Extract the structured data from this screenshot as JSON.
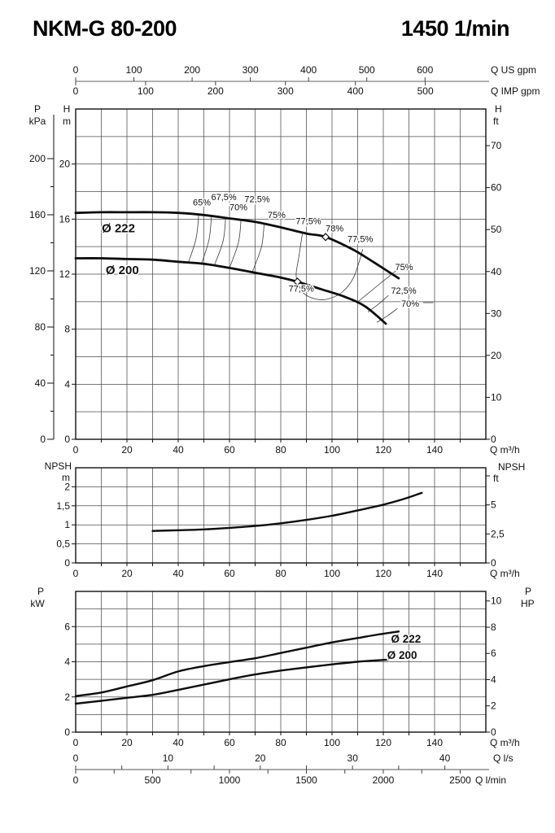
{
  "header": {
    "model": "NKM-G 80-200",
    "speed": "1450 1/min"
  },
  "top_axis": {
    "us": {
      "unit": "Q US gpm",
      "labels": [
        0,
        100,
        200,
        300,
        400,
        500,
        600
      ]
    },
    "imp": {
      "unit": "Q IMP gpm",
      "labels": [
        0,
        100,
        200,
        300,
        400,
        500
      ]
    }
  },
  "bottom_axis": {
    "ls": {
      "unit": "Q l/s",
      "labels": [
        0,
        10,
        20,
        30,
        40
      ]
    },
    "lmin": {
      "unit": "Q l/min",
      "labels": [
        0,
        500,
        1000,
        1500,
        2000,
        2500
      ]
    }
  },
  "colors": {
    "curve": "#0d0d0d",
    "grid": "#4d4d4d",
    "frame": "#111111",
    "secondary_axis": "#808080"
  },
  "chart_data": [
    {
      "id": "head",
      "type": "line",
      "x_unit": "Q m³/h",
      "xlim": [
        0,
        160
      ],
      "x_grid_step": 10,
      "x_label_step": 20,
      "y_m": {
        "header": [
          "H",
          "m"
        ],
        "labels": [
          0,
          4,
          8,
          12,
          16,
          20
        ],
        "lim": [
          0,
          24
        ],
        "grid_step": 2
      },
      "y_kpa": {
        "header": [
          "P",
          "kPa"
        ],
        "labels": [
          0,
          40,
          80,
          120,
          160,
          200
        ],
        "tick_step": 20
      },
      "y_ft": {
        "header": [
          "H",
          "ft"
        ],
        "labels": [
          0,
          10,
          20,
          30,
          40,
          50,
          60,
          70
        ]
      },
      "series": [
        {
          "name": "Ø 222",
          "points": [
            [
              0,
              16.45
            ],
            [
              10,
              16.5
            ],
            [
              20,
              16.5
            ],
            [
              30,
              16.5
            ],
            [
              40,
              16.45
            ],
            [
              50,
              16.3
            ],
            [
              60,
              16.05
            ],
            [
              70,
              15.8
            ],
            [
              80,
              15.4
            ],
            [
              90,
              14.95
            ],
            [
              97.5,
              14.7
            ],
            [
              108,
              13.8
            ],
            [
              116,
              12.9
            ],
            [
              126,
              11.7
            ]
          ]
        },
        {
          "name": "Ø 200",
          "points": [
            [
              0,
              13.15
            ],
            [
              10,
              13.15
            ],
            [
              20,
              13.1
            ],
            [
              30,
              13.05
            ],
            [
              40,
              12.9
            ],
            [
              50,
              12.75
            ],
            [
              60,
              12.45
            ],
            [
              70,
              12.1
            ],
            [
              80,
              11.75
            ],
            [
              86.5,
              11.45
            ],
            [
              95,
              10.95
            ],
            [
              105,
              10.35
            ],
            [
              113,
              9.65
            ],
            [
              121,
              8.4
            ]
          ]
        }
      ],
      "impeller_labels": [
        {
          "text": "Ø 222",
          "q": 10.2,
          "h": 15.05
        },
        {
          "text": "Ø 200",
          "q": 11.7,
          "h": 12.0
        }
      ],
      "best_efficiency_points": [
        {
          "eff": "78%",
          "q": 97.5,
          "h": 14.7
        },
        {
          "eff": "77,5%",
          "q": 86.5,
          "h": 11.45
        }
      ],
      "efficiency": {
        "labels": [
          {
            "text": "65%",
            "q": 49.2,
            "h": 17.2
          },
          {
            "text": "67,5%",
            "q": 57.8,
            "h": 17.6
          },
          {
            "text": "70%",
            "q": 63.5,
            "h": 16.85
          },
          {
            "text": "72,5%",
            "q": 70.8,
            "h": 17.45
          },
          {
            "text": "75%",
            "q": 78.4,
            "h": 16.3
          },
          {
            "text": "77,5%",
            "q": 90.8,
            "h": 15.85
          },
          {
            "text": "78%",
            "q": 101.0,
            "h": 15.3
          },
          {
            "text": "77,5%",
            "q": 111.0,
            "h": 14.55
          },
          {
            "text": "77,5%",
            "q": 88.0,
            "h": 10.95
          },
          {
            "text": "75%",
            "q": 124.6,
            "h": 12.5,
            "anchor": "start"
          },
          {
            "text": "72,5%",
            "q": 123.0,
            "h": 10.8,
            "anchor": "start"
          },
          {
            "text": "70%",
            "q": 127.0,
            "h": 9.85,
            "anchor": "start"
          }
        ],
        "contours": [
          {
            "eff": "65%",
            "points": [
              [
                48,
                16.37
              ],
              [
                47,
                14.6
              ],
              [
                44,
                12.87
              ]
            ]
          },
          {
            "eff": "67,5%",
            "points": [
              [
                53,
                16.25
              ],
              [
                52,
                14.5
              ],
              [
                49,
                12.7
              ]
            ]
          },
          {
            "eff": "70%",
            "points": [
              [
                58.5,
                16.1
              ],
              [
                57.5,
                14.4
              ],
              [
                54,
                12.6
              ]
            ]
          },
          {
            "eff": "72,5%",
            "points": [
              [
                64.5,
                15.95
              ],
              [
                63.5,
                14.3
              ],
              [
                60,
                12.45
              ]
            ]
          },
          {
            "eff": "75%",
            "points": [
              [
                73.5,
                15.6
              ],
              [
                72.5,
                14.0
              ],
              [
                69,
                12.2
              ]
            ]
          },
          {
            "eff": "77,5%",
            "points": [
              [
                88.5,
                15.05
              ],
              [
                87,
                13.2
              ],
              [
                86,
                12.0
              ],
              [
                86.8,
                11.3
              ],
              [
                89,
                10.6
              ],
              [
                93.5,
                10.2
              ],
              [
                98.5,
                10.2
              ],
              [
                104,
                10.7
              ],
              [
                108.5,
                11.8
              ],
              [
                112,
                13.8
              ]
            ]
          },
          {
            "eff": "75%",
            "points": [
              [
                126,
                12.4
              ],
              [
                118,
                11.2
              ],
              [
                109.5,
                9.9
              ]
            ]
          },
          {
            "eff": "72,5%",
            "points": [
              [
                122,
                10.45
              ],
              [
                118,
                9.8
              ],
              [
                114,
                9.25
              ]
            ]
          },
          {
            "eff": "70%",
            "points": [
              [
                125.5,
                9.5
              ],
              [
                121.5,
                8.95
              ],
              [
                117.5,
                8.5
              ]
            ]
          },
          {
            "eff": "70%",
            "points": [
              [
                135.5,
                9.93
              ],
              [
                139.5,
                9.93
              ]
            ]
          }
        ]
      }
    },
    {
      "id": "npsh",
      "type": "line",
      "x_unit": "Q m³/h",
      "y_m": {
        "header": [
          "NPSH",
          "m"
        ],
        "labels": [
          "2",
          "1,5",
          "1",
          "0,5",
          "0"
        ],
        "values": [
          2,
          1.5,
          1,
          0.5,
          0
        ],
        "lim": [
          0,
          2.5
        ],
        "grid_step": 0.5
      },
      "y_ft": {
        "header": [
          "NPSH",
          "ft"
        ],
        "labels": [
          "5",
          "2,5",
          "0"
        ],
        "values": [
          5,
          2.5,
          0
        ]
      },
      "series": [
        {
          "name": "NPSH",
          "points": [
            [
              30,
              0.84
            ],
            [
              40,
              0.86
            ],
            [
              50,
              0.88
            ],
            [
              60,
              0.92
            ],
            [
              70,
              0.97
            ],
            [
              80,
              1.04
            ],
            [
              90,
              1.13
            ],
            [
              100,
              1.24
            ],
            [
              110,
              1.38
            ],
            [
              120,
              1.53
            ],
            [
              128,
              1.68
            ],
            [
              135,
              1.84
            ]
          ]
        }
      ]
    },
    {
      "id": "power",
      "type": "line",
      "x_unit": "Q m³/h",
      "y_kw": {
        "header": [
          "P",
          "kW"
        ],
        "labels": [
          0,
          2,
          4,
          6
        ],
        "lim": [
          0,
          8
        ],
        "grid_step": 1
      },
      "y_hp": {
        "header": [
          "P",
          "HP"
        ],
        "labels": [
          10,
          8,
          6,
          4,
          2,
          0
        ]
      },
      "series": [
        {
          "name": "Ø 222",
          "label_pos": {
            "q": 123.0,
            "p": 5.08
          },
          "points": [
            [
              0,
              2.05
            ],
            [
              10,
              2.25
            ],
            [
              20,
              2.6
            ],
            [
              30,
              2.95
            ],
            [
              40,
              3.45
            ],
            [
              50,
              3.75
            ],
            [
              60,
              3.98
            ],
            [
              70,
              4.2
            ],
            [
              80,
              4.5
            ],
            [
              90,
              4.8
            ],
            [
              100,
              5.1
            ],
            [
              110,
              5.35
            ],
            [
              118,
              5.55
            ],
            [
              126,
              5.72
            ]
          ]
        },
        {
          "name": "Ø 200",
          "label_pos": {
            "q": 121.5,
            "p": 4.17
          },
          "points": [
            [
              0,
              1.62
            ],
            [
              10,
              1.78
            ],
            [
              20,
              1.95
            ],
            [
              30,
              2.12
            ],
            [
              40,
              2.4
            ],
            [
              50,
              2.7
            ],
            [
              60,
              3.0
            ],
            [
              70,
              3.28
            ],
            [
              80,
              3.5
            ],
            [
              90,
              3.68
            ],
            [
              100,
              3.85
            ],
            [
              110,
              4.0
            ],
            [
              122,
              4.12
            ]
          ]
        }
      ]
    }
  ]
}
